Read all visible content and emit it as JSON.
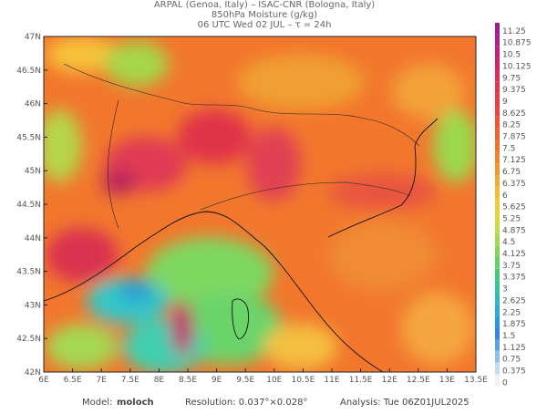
{
  "header": {
    "line1": "ARPAL (Genoa, Italy)  –  ISAC-CNR (Bologna, Italy)",
    "line2": "850hPa Moisture (g/kg)",
    "line3": "06 UTC Wed 02 JUL  –  τ = 24h"
  },
  "latitude_labels": [
    "47N",
    "46.5N",
    "46N",
    "45.5N",
    "45N",
    "44.5N",
    "44N",
    "43.5N",
    "43N",
    "42.5N",
    "42N"
  ],
  "longitude_labels": [
    "6E",
    "6.5E",
    "7E",
    "7.5E",
    "8E",
    "8.5E",
    "9E",
    "9.5E",
    "10E",
    "10.5E",
    "11E",
    "11.5E",
    "12E",
    "12.5E",
    "13E",
    "13.5E"
  ],
  "colorbar": {
    "labels": [
      "11.25",
      "10.875",
      "10.5",
      "10.125",
      "9.75",
      "9.375",
      "9",
      "8.625",
      "8.25",
      "7.875",
      "7.5",
      "7.125",
      "6.75",
      "6.375",
      "6",
      "5.625",
      "5.25",
      "4.875",
      "4.5",
      "4.125",
      "3.75",
      "3.375",
      "3",
      "2.625",
      "2.25",
      "1.875",
      "1.5",
      "1.125",
      "0.75",
      "0.375",
      "0"
    ]
  },
  "footer": {
    "model_label": "Model:",
    "model": "moloch",
    "resolution": "Resolution: 0.037°×0.028°",
    "analysis": "Analysis: Tue 06Z01JUL2025"
  }
}
